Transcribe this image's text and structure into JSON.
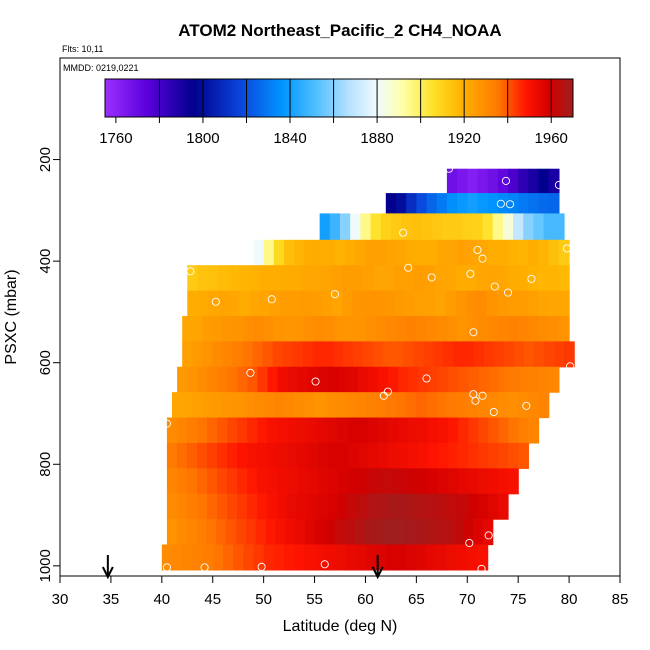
{
  "chart_data": {
    "type": "heatmap",
    "title": "ATOM2 Northeast_Pacific_2 CH4_NOAA",
    "flights_label": "Flts: 10,11",
    "dates_label": "MMDD: 0219,0221",
    "xlabel": "Latitude (deg N)",
    "ylabel": "PSXC (mbar)",
    "xlim": [
      30,
      85
    ],
    "ylim": [
      1020,
      0
    ],
    "xticks": [
      "30",
      "35",
      "40",
      "45",
      "50",
      "55",
      "60",
      "65",
      "70",
      "75",
      "80",
      "85"
    ],
    "yticks": [
      "200",
      "400",
      "600",
      "800",
      "1000"
    ],
    "colorbar": {
      "range": [
        1755,
        1970
      ],
      "tick_labels": [
        "1760",
        "1800",
        "1840",
        "1880",
        "1920",
        "1960"
      ],
      "tick_values": [
        1760,
        1800,
        1840,
        1880,
        1920,
        1960
      ]
    },
    "arrows_latitude": [
      34.7,
      61.2
    ],
    "rows": [
      {
        "p_top": 218,
        "p_bot": 266,
        "lat_start": 68,
        "lat_end": 79,
        "vals": [
          1768,
          1765,
          1762,
          1765,
          1768,
          1772,
          1778,
          1785,
          1790,
          1795,
          1790
        ]
      },
      {
        "p_top": 266,
        "p_bot": 306,
        "lat_start": 62,
        "lat_end": 79,
        "vals": [
          1795,
          1800,
          1810,
          1818,
          1825,
          1830,
          1835,
          1838,
          1840,
          1838,
          1836,
          1834,
          1832,
          1830,
          1828,
          1826,
          1825
        ]
      },
      {
        "p_top": 306,
        "p_bot": 358,
        "lat_start": 55.5,
        "lat_end": 79.5,
        "vals": [
          1840,
          1848,
          1860,
          1880,
          1895,
          1905,
          1910,
          1912,
          1914,
          1915,
          1914,
          1913,
          1912,
          1912,
          1911,
          1910,
          1905,
          1895,
          1885,
          1870,
          1860,
          1855,
          1850,
          1850
        ]
      },
      {
        "p_top": 358,
        "p_bot": 408,
        "lat_start": 49,
        "lat_end": 80,
        "vals": [
          1880,
          1895,
          1908,
          1915,
          1918,
          1920,
          1921,
          1920,
          1919,
          1920,
          1922,
          1924,
          1924,
          1923,
          1922,
          1921,
          1920,
          1920,
          1922,
          1923,
          1924,
          1923,
          1922,
          1920,
          1920,
          1919,
          1918,
          1920,
          1918,
          1915,
          1912
        ]
      },
      {
        "p_top": 408,
        "p_bot": 458,
        "lat_start": 42.5,
        "lat_end": 80,
        "vals": [
          1912,
          1914,
          1915,
          1916,
          1917,
          1918,
          1919,
          1920,
          1920,
          1921,
          1921,
          1922,
          1922,
          1923,
          1924,
          1925,
          1925,
          1924,
          1923,
          1923,
          1924,
          1924,
          1925,
          1924,
          1923,
          1922,
          1921,
          1921,
          1922,
          1923,
          1922,
          1921,
          1920,
          1919,
          1918,
          1918,
          1917
        ]
      },
      {
        "p_top": 458,
        "p_bot": 508,
        "lat_start": 42.5,
        "lat_end": 80,
        "vals": [
          1920,
          1921,
          1922,
          1923,
          1922,
          1921,
          1922,
          1923,
          1924,
          1925,
          1925,
          1926,
          1925,
          1924,
          1923,
          1925,
          1927,
          1928,
          1928,
          1927,
          1926,
          1925,
          1924,
          1924,
          1923,
          1925,
          1927,
          1929,
          1930,
          1928,
          1926,
          1925,
          1925,
          1924,
          1923,
          1922,
          1922
        ]
      },
      {
        "p_top": 508,
        "p_bot": 558,
        "lat_start": 42,
        "lat_end": 80,
        "vals": [
          1922,
          1923,
          1925,
          1926,
          1927,
          1928,
          1929,
          1930,
          1929,
          1928,
          1927,
          1928,
          1929,
          1930,
          1929,
          1928,
          1927,
          1928,
          1929,
          1930,
          1931,
          1932,
          1933,
          1932,
          1931,
          1930,
          1929,
          1928,
          1929,
          1930,
          1931,
          1932,
          1933,
          1932,
          1931,
          1930,
          1929,
          1928
        ]
      },
      {
        "p_top": 558,
        "p_bot": 608,
        "lat_start": 42,
        "lat_end": 80.5,
        "vals": [
          1924,
          1926,
          1928,
          1930,
          1932,
          1934,
          1936,
          1938,
          1940,
          1942,
          1943,
          1944,
          1945,
          1946,
          1946,
          1945,
          1944,
          1943,
          1942,
          1941,
          1940,
          1940,
          1941,
          1942,
          1943,
          1944,
          1945,
          1946,
          1946,
          1945,
          1944,
          1943,
          1942,
          1941,
          1940,
          1941,
          1942,
          1943,
          1944
        ]
      },
      {
        "p_top": 608,
        "p_bot": 658,
        "lat_start": 41.5,
        "lat_end": 79,
        "vals": [
          1926,
          1928,
          1930,
          1932,
          1934,
          1936,
          1938,
          1940,
          1944,
          1948,
          1952,
          1954,
          1955,
          1956,
          1957,
          1958,
          1957,
          1956,
          1954,
          1952,
          1950,
          1948,
          1946,
          1945,
          1944,
          1943,
          1942,
          1941,
          1940,
          1939,
          1938,
          1937,
          1936,
          1935,
          1934,
          1933,
          1932,
          1931
        ]
      },
      {
        "p_top": 658,
        "p_bot": 708,
        "lat_start": 41,
        "lat_end": 78,
        "vals": [
          1922,
          1923,
          1924,
          1925,
          1926,
          1927,
          1928,
          1929,
          1930,
          1931,
          1932,
          1931,
          1930,
          1929,
          1928,
          1929,
          1930,
          1931,
          1932,
          1933,
          1934,
          1935,
          1936,
          1937,
          1938,
          1937,
          1936,
          1935,
          1934,
          1933,
          1932,
          1931,
          1930,
          1929,
          1930,
          1931,
          1932
        ]
      },
      {
        "p_top": 708,
        "p_bot": 758,
        "lat_start": 40.5,
        "lat_end": 77,
        "vals": [
          1930,
          1932,
          1934,
          1936,
          1938,
          1940,
          1942,
          1944,
          1946,
          1948,
          1950,
          1951,
          1952,
          1953,
          1954,
          1955,
          1956,
          1957,
          1958,
          1958,
          1957,
          1956,
          1955,
          1954,
          1953,
          1952,
          1951,
          1950,
          1948,
          1946,
          1944,
          1942,
          1940,
          1938,
          1936,
          1934,
          1932
        ]
      },
      {
        "p_top": 758,
        "p_bot": 808,
        "lat_start": 40.5,
        "lat_end": 76,
        "vals": [
          1935,
          1937,
          1939,
          1941,
          1943,
          1945,
          1947,
          1949,
          1950,
          1951,
          1952,
          1953,
          1954,
          1955,
          1956,
          1957,
          1958,
          1958,
          1957,
          1956,
          1955,
          1954,
          1953,
          1952,
          1951,
          1950,
          1949,
          1948,
          1947,
          1946,
          1945,
          1944,
          1943,
          1942,
          1941,
          1940
        ]
      },
      {
        "p_top": 808,
        "p_bot": 858,
        "lat_start": 40.5,
        "lat_end": 75,
        "vals": [
          1932,
          1934,
          1936,
          1938,
          1940,
          1942,
          1944,
          1946,
          1948,
          1950,
          1951,
          1952,
          1953,
          1954,
          1955,
          1956,
          1957,
          1958,
          1959,
          1960,
          1961,
          1962,
          1962,
          1961,
          1960,
          1959,
          1958,
          1957,
          1956,
          1955,
          1954,
          1953,
          1952,
          1951,
          1950
        ]
      },
      {
        "p_top": 858,
        "p_bot": 908,
        "lat_start": 40.5,
        "lat_end": 74,
        "vals": [
          1930,
          1932,
          1934,
          1936,
          1938,
          1940,
          1942,
          1944,
          1946,
          1948,
          1950,
          1952,
          1954,
          1955,
          1956,
          1957,
          1958,
          1960,
          1962,
          1964,
          1966,
          1967,
          1968,
          1968,
          1967,
          1966,
          1965,
          1964,
          1963,
          1962,
          1960,
          1958,
          1956,
          1954
        ]
      },
      {
        "p_top": 908,
        "p_bot": 958,
        "lat_start": 40.5,
        "lat_end": 72.5,
        "vals": [
          1928,
          1930,
          1932,
          1934,
          1936,
          1938,
          1940,
          1942,
          1944,
          1946,
          1948,
          1950,
          1952,
          1954,
          1956,
          1958,
          1960,
          1962,
          1964,
          1966,
          1968,
          1969,
          1970,
          1970,
          1969,
          1968,
          1967,
          1966,
          1965,
          1963,
          1960,
          1957,
          1955
        ]
      },
      {
        "p_top": 958,
        "p_bot": 1008,
        "lat_start": 40,
        "lat_end": 72,
        "vals": [
          1930,
          1931,
          1932,
          1933,
          1934,
          1936,
          1938,
          1940,
          1942,
          1944,
          1946,
          1947,
          1948,
          1949,
          1950,
          1951,
          1952,
          1953,
          1954,
          1955,
          1956,
          1957,
          1958,
          1958,
          1957,
          1956,
          1955,
          1954,
          1953,
          1952,
          1951,
          1950
        ]
      }
    ],
    "samples": [
      {
        "lat": 68.2,
        "p": 218
      },
      {
        "lat": 73.8,
        "p": 242
      },
      {
        "lat": 79,
        "p": 250
      },
      {
        "lat": 73.3,
        "p": 287
      },
      {
        "lat": 74.2,
        "p": 288
      },
      {
        "lat": 63.7,
        "p": 344
      },
      {
        "lat": 71,
        "p": 378
      },
      {
        "lat": 71.5,
        "p": 395
      },
      {
        "lat": 79.8,
        "p": 375
      },
      {
        "lat": 42.8,
        "p": 420
      },
      {
        "lat": 64.2,
        "p": 413
      },
      {
        "lat": 66.5,
        "p": 432
      },
      {
        "lat": 70.3,
        "p": 425
      },
      {
        "lat": 76.3,
        "p": 435
      },
      {
        "lat": 72.7,
        "p": 450
      },
      {
        "lat": 74,
        "p": 462
      },
      {
        "lat": 57,
        "p": 465
      },
      {
        "lat": 45.3,
        "p": 480
      },
      {
        "lat": 50.8,
        "p": 475
      },
      {
        "lat": 70.6,
        "p": 540
      },
      {
        "lat": 48.7,
        "p": 620
      },
      {
        "lat": 55.1,
        "p": 637
      },
      {
        "lat": 66,
        "p": 631
      },
      {
        "lat": 80.1,
        "p": 607
      },
      {
        "lat": 62.2,
        "p": 657
      },
      {
        "lat": 61.8,
        "p": 665
      },
      {
        "lat": 70.6,
        "p": 662
      },
      {
        "lat": 71.5,
        "p": 665
      },
      {
        "lat": 70.8,
        "p": 675
      },
      {
        "lat": 75.8,
        "p": 685
      },
      {
        "lat": 72.6,
        "p": 697
      },
      {
        "lat": 40.5,
        "p": 720
      },
      {
        "lat": 72.1,
        "p": 940
      },
      {
        "lat": 70.2,
        "p": 955
      },
      {
        "lat": 40.5,
        "p": 1003
      },
      {
        "lat": 44.2,
        "p": 1003
      },
      {
        "lat": 49.8,
        "p": 1002
      },
      {
        "lat": 56,
        "p": 997
      },
      {
        "lat": 71.4,
        "p": 1006
      }
    ]
  }
}
